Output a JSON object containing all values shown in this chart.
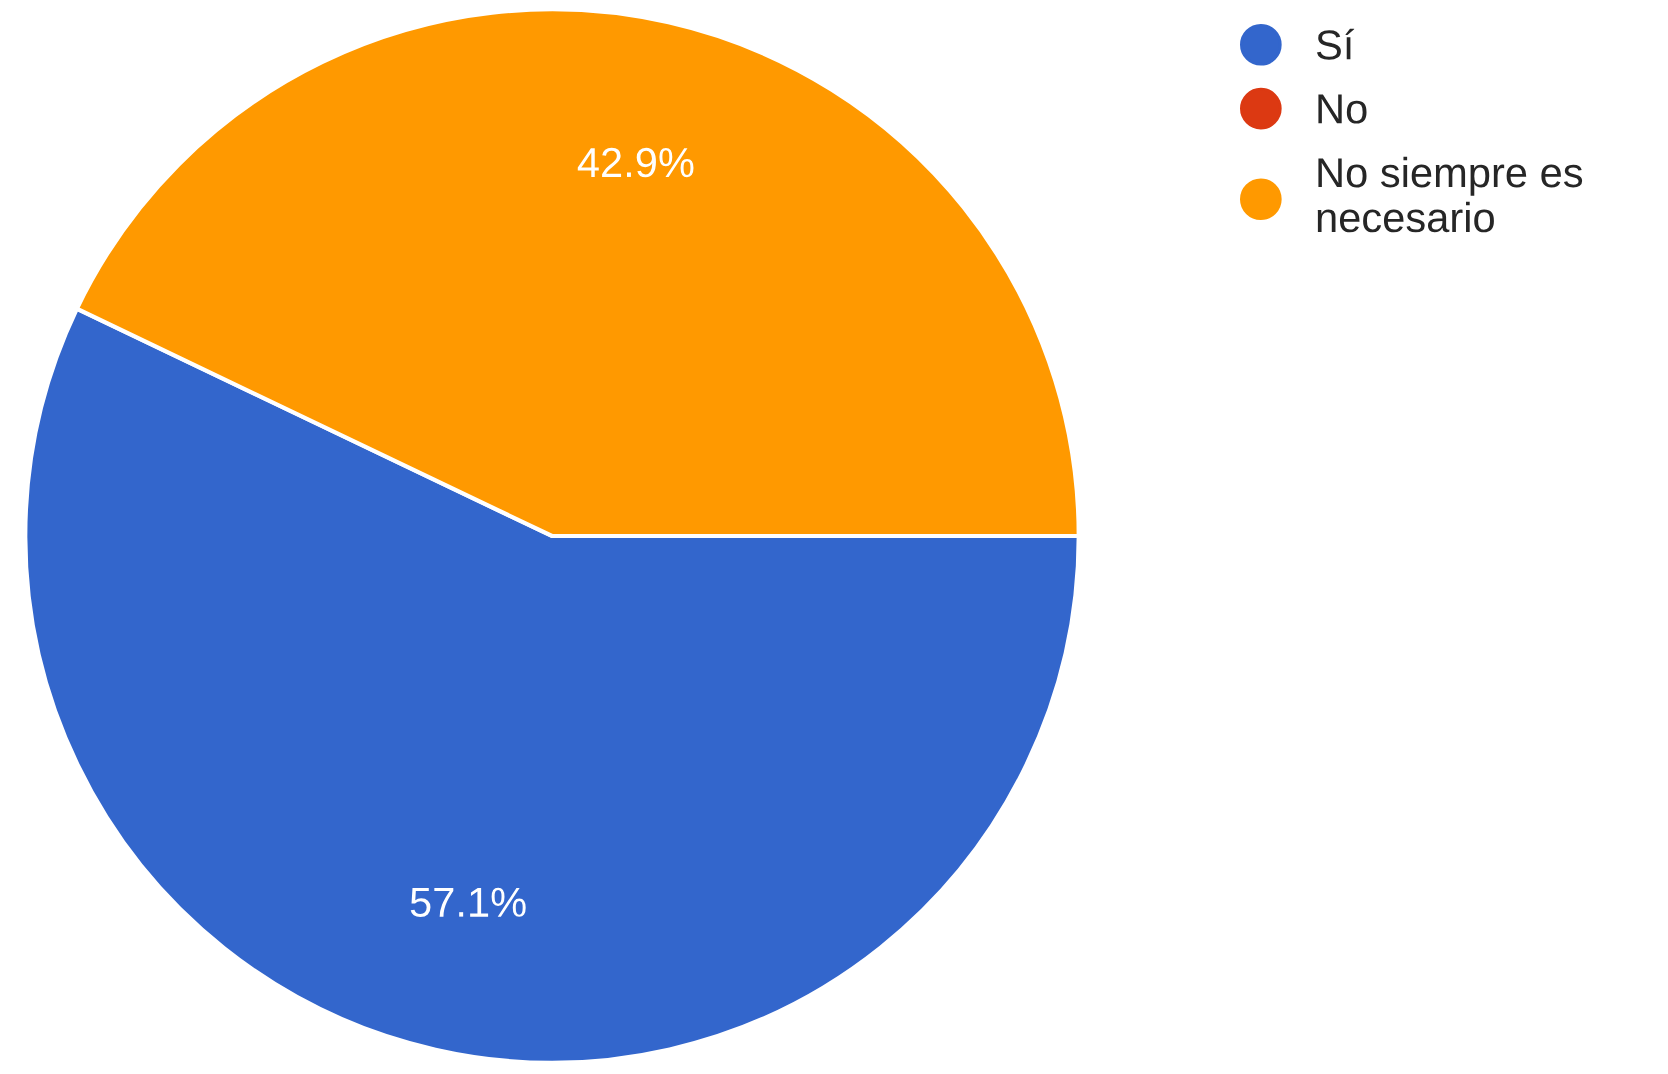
{
  "chart_data": {
    "type": "pie",
    "categories": [
      "Sí",
      "No",
      "No siempre es\nnecesario"
    ],
    "values": [
      57.1,
      0,
      42.9
    ],
    "colors": [
      "#3366cc",
      "#dc3912",
      "#ff9900"
    ],
    "value_labels": [
      "57.1%",
      null,
      "42.9%"
    ],
    "legend": "top right"
  }
}
